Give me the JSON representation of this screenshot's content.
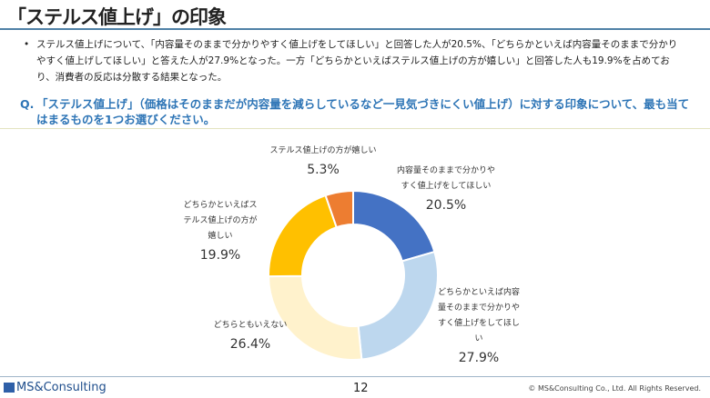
{
  "title": "「ステルス値上げ」の印象",
  "bullet": "ステルス値上げについて、「内容量そのままで分かりやすく値上げをしてほしい」と回答した人が20.5%、「どちらかといえば内容量そのままで分かりやすく値上げしてほしい」と答えた人が27.9%となった。一方「どちらかといえばステルス値上げの方が嬉しい」と回答した人も19.9%を占めており、消費者の反応は分散する結果となった。",
  "question": {
    "prefix": "Q.",
    "text": "「ステルス値上げ」（価格はそのままだが内容量を減らしているなど一見気づきにくい値上げ）に対する印象について、最も当てはまるものを1つお選びください。"
  },
  "chart_data": {
    "type": "pie",
    "donut": true,
    "start": "top",
    "direction": "clockwise",
    "slices": [
      {
        "label": "内容量そのままで分かりやすく値上げをしてほしい",
        "value": 20.5,
        "display": "20.5%",
        "color": "#4472C4"
      },
      {
        "label": "どちらかといえば内容量そのままで分かりやすく値上げをしてほしい",
        "value": 27.9,
        "display": "27.9%",
        "color": "#BDD7EE"
      },
      {
        "label": "どちらともいえない",
        "value": 26.4,
        "display": "26.4%",
        "color": "#FFF2CC"
      },
      {
        "label": "どちらかといえばステルス値上げの方が嬉しい",
        "value": 19.9,
        "display": "19.9%",
        "color": "#FFC000"
      },
      {
        "label": "ステルス値上げの方が嬉しい",
        "value": 5.3,
        "display": "5.3%",
        "color": "#ED7D31"
      }
    ]
  },
  "footer": {
    "logo": "MS&Consulting",
    "page": "12",
    "copyright": "© MS&Consulting Co., Ltd. All Rights Reserved."
  }
}
